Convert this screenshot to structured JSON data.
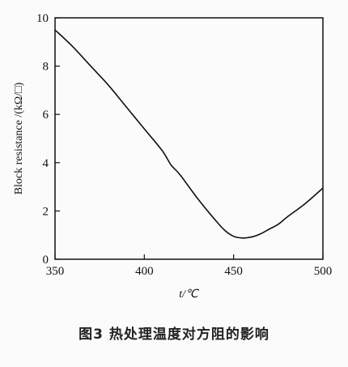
{
  "chart_data": {
    "type": "line",
    "xlabel": "t/℃",
    "ylabel": "Block resistance /(kΩ/□)",
    "xlim": [
      350,
      500
    ],
    "ylim": [
      0,
      10
    ],
    "xticks": [
      350,
      400,
      450,
      500
    ],
    "yticks": [
      0,
      2,
      4,
      6,
      8,
      10
    ],
    "grid": false,
    "series": [
      {
        "x": [
          350,
          360,
          370,
          380,
          390,
          400,
          410,
          415,
          420,
          430,
          440,
          445,
          450,
          455,
          460,
          465,
          470,
          475,
          480,
          490,
          500
        ],
        "y": [
          9.5,
          8.8,
          8.0,
          7.2,
          6.3,
          5.4,
          4.5,
          3.9,
          3.5,
          2.5,
          1.6,
          1.2,
          0.95,
          0.88,
          0.92,
          1.05,
          1.25,
          1.45,
          1.75,
          2.3,
          2.95
        ]
      }
    ]
  },
  "caption": "图3 热处理温度对方阻的影响"
}
